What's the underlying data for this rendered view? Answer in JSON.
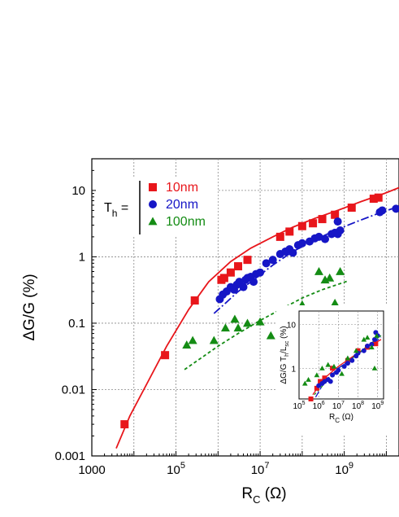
{
  "chart_data": [
    {
      "type": "scatter",
      "xscale": "log",
      "yscale": "log",
      "xlim": [
        1000,
        20000000000
      ],
      "ylim": [
        0.001,
        30
      ],
      "grid": true,
      "legend_position": "top-left",
      "xlabel_main": "R",
      "xlabel_sub": "C",
      "xlabel_unit": " (Ω)",
      "ylabel": "ΔG/G (%)",
      "x_ticks": [
        {
          "value": 1000,
          "base": "1000",
          "exp": ""
        },
        {
          "value": 100000,
          "base": "10",
          "exp": "5"
        },
        {
          "value": 10000000,
          "base": "10",
          "exp": "7"
        },
        {
          "value": 1000000000,
          "base": "10",
          "exp": "9"
        }
      ],
      "y_ticks": [
        {
          "value": 0.001,
          "label": "0.001"
        },
        {
          "value": 0.01,
          "label": "0.01"
        },
        {
          "value": 0.1,
          "label": "0.1"
        },
        {
          "value": 1,
          "label": "1"
        },
        {
          "value": 10,
          "label": "10"
        }
      ],
      "legend_label_main": "T",
      "legend_label_sub": "h",
      "legend_label_eq": "=",
      "series": [
        {
          "name": "10nm",
          "color": "#e8161b",
          "marker": "square",
          "points": [
            [
              6000,
              0.003
            ],
            [
              55000,
              0.033
            ],
            [
              280000,
              0.22
            ],
            [
              1200000,
              0.45
            ],
            [
              1400000,
              0.48
            ],
            [
              2000000,
              0.58
            ],
            [
              3000000,
              0.72
            ],
            [
              5000000,
              0.9
            ],
            [
              30000000,
              2.0
            ],
            [
              50000000,
              2.4
            ],
            [
              100000000,
              2.9
            ],
            [
              180000000,
              3.2
            ],
            [
              300000000,
              3.7
            ],
            [
              600000000,
              4.3
            ],
            [
              1500000000,
              5.5
            ],
            [
              5000000000,
              7.5
            ],
            [
              6500000000,
              7.8
            ]
          ],
          "fit": [
            [
              3800,
              0.0013
            ],
            [
              8000,
              0.004
            ],
            [
              20000,
              0.012
            ],
            [
              60000,
              0.045
            ],
            [
              200000,
              0.16
            ],
            [
              600000,
              0.42
            ],
            [
              2000000,
              0.85
            ],
            [
              6000000,
              1.35
            ],
            [
              20000000,
              2.0
            ],
            [
              60000000,
              2.8
            ],
            [
              200000000,
              3.8
            ],
            [
              700000000,
              5.0
            ],
            [
              2500000000,
              6.8
            ],
            [
              9000000000,
              9.0
            ],
            [
              20000000000,
              11
            ]
          ]
        },
        {
          "name": "20nm",
          "color": "#1616c6",
          "marker": "circle",
          "points": [
            [
              1100000,
              0.23
            ],
            [
              1300000,
              0.27
            ],
            [
              1600000,
              0.3
            ],
            [
              2000000,
              0.35
            ],
            [
              2400000,
              0.32
            ],
            [
              2800000,
              0.38
            ],
            [
              3200000,
              0.42
            ],
            [
              4000000,
              0.35
            ],
            [
              4500000,
              0.45
            ],
            [
              5000000,
              0.48
            ],
            [
              6000000,
              0.5
            ],
            [
              7000000,
              0.42
            ],
            [
              8000000,
              0.55
            ],
            [
              10000000,
              0.58
            ],
            [
              14000000,
              0.8
            ],
            [
              20000000,
              0.9
            ],
            [
              30000000,
              1.1
            ],
            [
              40000000,
              1.2
            ],
            [
              50000000,
              1.3
            ],
            [
              60000000,
              1.15
            ],
            [
              80000000,
              1.5
            ],
            [
              100000000,
              1.6
            ],
            [
              150000000,
              1.7
            ],
            [
              200000000,
              1.9
            ],
            [
              250000000,
              2.0
            ],
            [
              350000000,
              1.85
            ],
            [
              500000000,
              2.2
            ],
            [
              600000000,
              2.3
            ],
            [
              700000000,
              2.2
            ],
            [
              800000000,
              2.5
            ],
            [
              700000000,
              3.4
            ],
            [
              7000000000,
              4.7
            ],
            [
              8000000000,
              5.0
            ],
            [
              17000000000,
              5.3
            ]
          ],
          "fit": [
            [
              800000,
              0.14
            ],
            [
              1500000,
              0.2
            ],
            [
              3000000,
              0.3
            ],
            [
              7000000,
              0.45
            ],
            [
              20000000,
              0.75
            ],
            [
              60000000,
              1.2
            ],
            [
              200000000,
              1.8
            ],
            [
              600000000,
              2.5
            ],
            [
              2000000000,
              3.4
            ],
            [
              7000000000,
              4.6
            ],
            [
              18000000000,
              5.6
            ]
          ]
        },
        {
          "name": "100nm",
          "color": "#148c14",
          "marker": "triangle",
          "points": [
            [
              180000,
              0.047
            ],
            [
              250000,
              0.055
            ],
            [
              800000,
              0.055
            ],
            [
              1500000,
              0.085
            ],
            [
              2500000,
              0.115
            ],
            [
              3000000,
              0.085
            ],
            [
              5000000,
              0.1
            ],
            [
              10000000,
              0.105
            ],
            [
              18000000,
              0.065
            ],
            [
              40000000,
              0.12
            ],
            [
              100000000,
              0.19
            ],
            [
              250000000,
              0.6
            ],
            [
              350000000,
              0.45
            ],
            [
              450000000,
              0.48
            ],
            [
              600000000,
              0.2
            ],
            [
              800000000,
              0.6
            ]
          ],
          "fit": [
            [
              160000,
              0.02
            ],
            [
              400000,
              0.03
            ],
            [
              1000000,
              0.045
            ],
            [
              3000000,
              0.07
            ],
            [
              10000000,
              0.11
            ],
            [
              30000000,
              0.16
            ],
            [
              100000000,
              0.24
            ],
            [
              300000000,
              0.32
            ],
            [
              1200000000,
              0.43
            ]
          ]
        }
      ]
    },
    {
      "type": "scatter",
      "name_hint": "inset",
      "xscale": "log",
      "yscale": "log",
      "xlim": [
        100000,
        2000000000
      ],
      "ylim": [
        0.2,
        20
      ],
      "grid": true,
      "xlabel_main": "R",
      "xlabel_sub": "C",
      "xlabel_unit": " (Ω)",
      "ylabel_parts": [
        "ΔG/G T",
        "h",
        "/L",
        "sc",
        " (%)"
      ],
      "x_ticks": [
        {
          "value": 100000,
          "base": "10",
          "exp": "5"
        },
        {
          "value": 1000000,
          "base": "10",
          "exp": "6"
        },
        {
          "value": 10000000,
          "base": "10",
          "exp": "7"
        },
        {
          "value": 100000000,
          "base": "10",
          "exp": "8"
        },
        {
          "value": 1000000000,
          "base": "10",
          "exp": "9"
        }
      ],
      "y_ticks": [
        {
          "value": 1,
          "label": "1"
        },
        {
          "value": 10,
          "label": "10"
        }
      ],
      "series": [
        {
          "color": "#e8161b",
          "marker": "square",
          "points": [
            [
              400000,
              0.2
            ],
            [
              800000,
              0.35
            ],
            [
              1200000,
              0.5
            ],
            [
              2000000,
              0.6
            ],
            [
              5000000,
              1.0
            ],
            [
              30000000,
              1.5
            ],
            [
              100000000,
              2.5
            ],
            [
              300000000,
              3.0
            ],
            [
              800000000,
              3.6
            ]
          ]
        },
        {
          "color": "#1616c6",
          "marker": "circle",
          "points": [
            [
              1000000,
              0.4
            ],
            [
              1500000,
              0.45
            ],
            [
              2000000,
              0.5
            ],
            [
              3000000,
              0.55
            ],
            [
              4000000,
              0.5
            ],
            [
              5000000,
              0.7
            ],
            [
              8000000,
              0.8
            ],
            [
              10000000,
              0.9
            ],
            [
              20000000,
              1.1
            ],
            [
              30000000,
              1.3
            ],
            [
              50000000,
              1.5
            ],
            [
              80000000,
              1.9
            ],
            [
              100000000,
              2.2
            ],
            [
              200000000,
              2.5
            ],
            [
              300000000,
              3.2
            ],
            [
              500000000,
              3.5
            ],
            [
              700000000,
              4.5
            ],
            [
              800000000,
              6.5
            ],
            [
              1000000000,
              5.5
            ]
          ]
        },
        {
          "color": "#148c14",
          "marker": "triangle",
          "points": [
            [
              200000,
              0.45
            ],
            [
              300000,
              0.55
            ],
            [
              800000,
              0.7
            ],
            [
              1500000,
              1.0
            ],
            [
              3000000,
              1.2
            ],
            [
              6000000,
              1.1
            ],
            [
              15000000,
              0.75
            ],
            [
              30000000,
              1.7
            ],
            [
              80000000,
              2.5
            ],
            [
              200000000,
              4.5
            ],
            [
              300000000,
              5.0
            ],
            [
              500000000,
              3.0
            ],
            [
              700000000,
              1.0
            ],
            [
              900000000,
              5.5
            ]
          ]
        }
      ],
      "fits": [
        {
          "color": "#e8161b",
          "dash": "",
          "points": [
            [
              500000,
              0.25
            ],
            [
              2000000,
              0.6
            ],
            [
              10000000,
              1.1
            ],
            [
              60000000,
              1.9
            ],
            [
              300000000,
              3.0
            ],
            [
              1500000000,
              4.5
            ]
          ]
        },
        {
          "color": "#1616c6",
          "dash": "8,3",
          "points": [
            [
              700000,
              0.22
            ],
            [
              2000000,
              0.5
            ],
            [
              10000000,
              1.0
            ],
            [
              60000000,
              1.8
            ],
            [
              300000000,
              3.0
            ],
            [
              1500000000,
              5.0
            ]
          ]
        },
        {
          "color": "#148c14",
          "dash": "3,3",
          "points": [
            [
              600000,
              0.25
            ],
            [
              2000000,
              0.45
            ],
            [
              10000000,
              0.95
            ],
            [
              60000000,
              1.8
            ],
            [
              300000000,
              3.2
            ],
            [
              1500000000,
              5.5
            ]
          ]
        }
      ]
    }
  ]
}
